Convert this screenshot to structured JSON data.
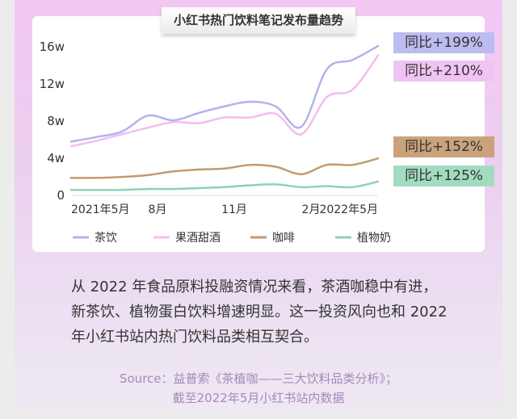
{
  "chart_data": {
    "type": "line",
    "title": "小红书热门饮料笔记发布量趋势",
    "x": [
      "2021-05",
      "2021-06",
      "2021-07",
      "2021-08",
      "2021-09",
      "2021-10",
      "2021-11",
      "2021-12",
      "2022-01",
      "2022-02",
      "2022-03",
      "2022-04",
      "2022-05"
    ],
    "x_tick_labels": [
      {
        "index": 0,
        "label": "2021年5月"
      },
      {
        "index": 3,
        "label": "8月"
      },
      {
        "index": 6,
        "label": "11月"
      },
      {
        "index": 9,
        "label": "2月"
      },
      {
        "index": 12,
        "label": "2022年5月"
      }
    ],
    "y_ticks": [
      {
        "value": 0,
        "label": "0"
      },
      {
        "value": 4,
        "label": "4w"
      },
      {
        "value": 8,
        "label": "8w"
      },
      {
        "value": 12,
        "label": "12w"
      },
      {
        "value": 16,
        "label": "16w"
      }
    ],
    "ylim": [
      0,
      16
    ],
    "grid": false,
    "legend_position": "bottom",
    "series": [
      {
        "name": "茶饮",
        "color": "#b4b2ea",
        "values": [
          5.7,
          6.2,
          6.8,
          8.5,
          8.0,
          8.8,
          9.5,
          10.0,
          9.5,
          7.3,
          13.5,
          14.5,
          16.0
        ],
        "yoy": "同比+199%",
        "badge_color": "#bcbcf0"
      },
      {
        "name": "果酒甜酒",
        "color": "#f3bdf0",
        "values": [
          5.2,
          5.8,
          6.5,
          7.2,
          7.8,
          7.7,
          8.3,
          8.3,
          8.7,
          6.5,
          10.5,
          11.3,
          15.0
        ],
        "yoy": "同比+210%",
        "badge_color": "#f0c4f2"
      },
      {
        "name": "咖啡",
        "color": "#c39a72",
        "values": [
          1.8,
          1.8,
          1.9,
          2.1,
          2.5,
          2.7,
          2.8,
          3.2,
          3.0,
          2.2,
          3.2,
          3.2,
          3.9
        ],
        "yoy": "同比+152%",
        "badge_color": "#caa37c"
      },
      {
        "name": "植物奶",
        "color": "#8fd2b4",
        "values": [
          0.5,
          0.5,
          0.5,
          0.6,
          0.6,
          0.7,
          0.8,
          1.0,
          1.1,
          0.8,
          0.9,
          0.8,
          1.4
        ],
        "yoy": "同比+125%",
        "badge_color": "#a2dcc0"
      }
    ]
  },
  "body_text": "从 2022 年食品原料投融资情况来看，茶酒咖稳中有进，新茶饮、植物蛋白饮料增速明显。这一投资风向也和 2022 年小红书站内热门饮料品类相互契合。",
  "source_line1": "Source：益普索《茶植咖——三大饮料品类分析》；",
  "source_line2": "截至2022年5月小红书站内数据"
}
